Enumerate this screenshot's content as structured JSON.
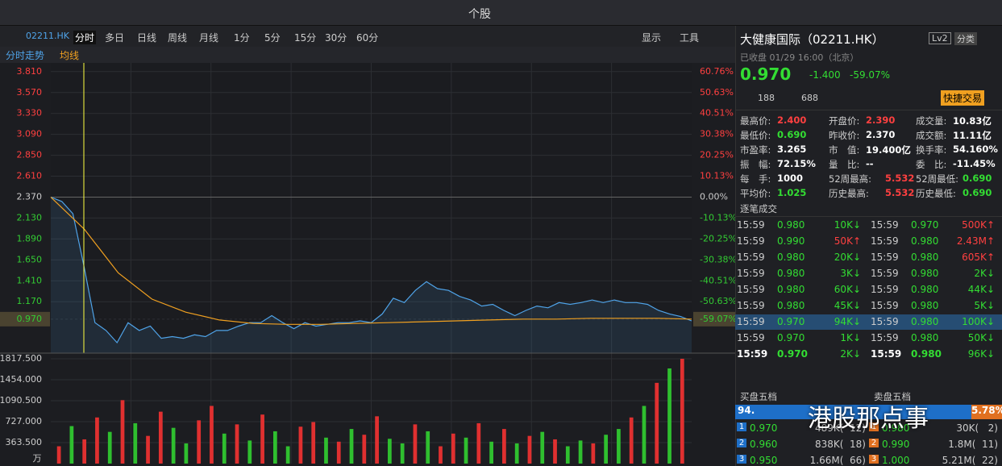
{
  "title_bar": {
    "title": "个股"
  },
  "toolbar": {
    "code": "02211.HK",
    "tabs": [
      "分时",
      "多日",
      "日线",
      "周线",
      "月线",
      "1分",
      "5分",
      "15分",
      "30分",
      "60分"
    ],
    "display": "显示",
    "tools": "工具"
  },
  "chart": {
    "legend": [
      {
        "name": "分时走势",
        "color": "#4fa3e8"
      },
      {
        "name": "均线",
        "color": "#f0a020"
      }
    ],
    "ylim": [
      0.58,
      3.91
    ],
    "price_ticks": [
      {
        "value": 3.81,
        "label": "3.810"
      },
      {
        "value": 3.57,
        "label": "3.570"
      },
      {
        "value": 3.33,
        "label": "3.330"
      },
      {
        "value": 3.09,
        "label": "3.090"
      },
      {
        "value": 2.85,
        "label": "2.850"
      },
      {
        "value": 2.61,
        "label": "2.610"
      },
      {
        "value": 2.37,
        "label": "2.370"
      },
      {
        "value": 2.13,
        "label": "2.130"
      },
      {
        "value": 1.89,
        "label": "1.890"
      },
      {
        "value": 1.65,
        "label": "1.650"
      },
      {
        "value": 1.41,
        "label": "1.410"
      },
      {
        "value": 1.17,
        "label": "1.170"
      },
      {
        "value": 0.97,
        "label": "0.970"
      }
    ],
    "pct_ticks": [
      {
        "value": 60.76,
        "label": "60.76%"
      },
      {
        "value": 50.63,
        "label": "50.63%"
      },
      {
        "value": 40.51,
        "label": "40.51%"
      },
      {
        "value": 30.38,
        "label": "30.38%"
      },
      {
        "value": 20.25,
        "label": "20.25%"
      },
      {
        "value": 10.13,
        "label": "10.13%"
      },
      {
        "value": 0,
        "label": "0.00%"
      },
      {
        "value": -10.13,
        "label": "-10.13%"
      },
      {
        "value": -20.25,
        "label": "-20.25%"
      },
      {
        "value": -30.38,
        "label": "-30.38%"
      },
      {
        "value": -40.51,
        "label": "-40.51%"
      },
      {
        "value": -50.63,
        "label": "-50.63%"
      },
      {
        "value": -59.07,
        "label": "-59.07%"
      }
    ],
    "price": [
      2.37,
      2.32,
      2.18,
      1.58,
      0.93,
      0.84,
      0.7,
      0.93,
      0.84,
      0.89,
      0.75,
      0.77,
      0.75,
      0.79,
      0.77,
      0.84,
      0.84,
      0.89,
      0.93,
      0.93,
      1.01,
      0.93,
      0.86,
      0.93,
      0.89,
      0.91,
      0.93,
      0.93,
      0.95,
      0.93,
      1.03,
      1.21,
      1.16,
      1.3,
      1.4,
      1.32,
      1.3,
      1.23,
      1.19,
      1.12,
      1.14,
      1.07,
      1.01,
      1.07,
      1.12,
      1.1,
      1.16,
      1.14,
      1.16,
      1.19,
      1.16,
      1.19,
      1.16,
      1.16,
      1.14,
      1.07,
      1.03,
      1.0,
      0.95
    ],
    "avg": [
      2.37,
      2.0,
      1.5,
      1.2,
      1.05,
      0.96,
      0.92,
      0.91,
      0.91,
      0.92,
      0.93,
      0.94,
      0.95,
      0.96,
      0.97,
      0.97,
      0.98,
      0.98,
      0.98,
      0.97
    ],
    "volume_ylim": [
      0,
      1817.5
    ],
    "volume_ticks": [
      {
        "value": 1817.5,
        "label": "1817.500"
      },
      {
        "value": 1454,
        "label": "1454.000"
      },
      {
        "value": 1090.5,
        "label": "1090.500"
      },
      {
        "value": 727,
        "label": "727.000"
      },
      {
        "value": 363.5,
        "label": "363.500"
      }
    ],
    "volume_unit": "万",
    "volume": [
      300,
      650,
      420,
      800,
      550,
      1100,
      700,
      480,
      900,
      620,
      350,
      750,
      1000,
      520,
      680,
      400,
      850,
      560,
      300,
      640,
      720,
      450,
      380,
      600,
      500,
      820,
      430,
      350,
      680,
      560,
      300,
      520,
      450,
      700,
      380,
      600,
      350,
      480,
      550,
      420,
      300,
      400,
      350,
      500,
      600,
      800,
      1000,
      1400,
      1650,
      1817.5
    ],
    "volume_colors": [
      "#e03030",
      "#2fbf2f",
      "#e03030",
      "#e03030",
      "#2fbf2f",
      "#e03030",
      "#2fbf2f",
      "#e03030",
      "#e03030",
      "#2fbf2f",
      "#2fbf2f",
      "#e03030",
      "#e03030",
      "#2fbf2f",
      "#e03030",
      "#2fbf2f",
      "#e03030",
      "#2fbf2f",
      "#2fbf2f",
      "#e03030",
      "#e03030",
      "#2fbf2f",
      "#e03030",
      "#2fbf2f",
      "#e03030",
      "#e03030",
      "#2fbf2f",
      "#2fbf2f",
      "#e03030",
      "#2fbf2f",
      "#e03030",
      "#e03030",
      "#2fbf2f",
      "#e03030",
      "#2fbf2f",
      "#e03030",
      "#2fbf2f",
      "#e03030",
      "#2fbf2f",
      "#e03030",
      "#2fbf2f",
      "#2fbf2f",
      "#e03030",
      "#2fbf2f",
      "#2fbf2f",
      "#e03030",
      "#2fbf2f",
      "#e03030",
      "#2fbf2f",
      "#e03030"
    ]
  },
  "info": {
    "name": "大健康国际（02211.HK）",
    "lv2": "Lv2",
    "category": "分类",
    "status": "已收盘 01/29 16:00（北京）",
    "price": "0.970",
    "change": "-1.400",
    "pct": "-59.07%",
    "views": "188",
    "likes": "688",
    "quick": "快捷交易",
    "stats": [
      [
        {
          "k": "最高价:",
          "v": "2.400",
          "c": "#ff4040"
        },
        {
          "k": "开盘价:",
          "v": "2.390",
          "c": "#ff4040"
        },
        {
          "k": "成交量:",
          "v": "10.83亿",
          "c": "#ffffff"
        }
      ],
      [
        {
          "k": "最低价:",
          "v": "0.690",
          "c": "#33dd33"
        },
        {
          "k": "昨收价:",
          "v": "2.370",
          "c": "#ffffff"
        },
        {
          "k": "成交额:",
          "v": "11.11亿",
          "c": "#ffffff"
        }
      ],
      [
        {
          "k": "市盈率:",
          "v": "3.265",
          "c": "#ffffff"
        },
        {
          "k": "市　值:",
          "v": "19.400亿",
          "c": "#ffffff"
        },
        {
          "k": "换手率:",
          "v": "54.160%",
          "c": "#ffffff"
        }
      ],
      [
        {
          "k": "振　幅:",
          "v": "72.15%",
          "c": "#ffffff"
        },
        {
          "k": "量　比:",
          "v": "--",
          "c": "#ffffff"
        },
        {
          "k": "委　比:",
          "v": "-11.45%",
          "c": "#ffffff"
        }
      ],
      [
        {
          "k": "每　手:",
          "v": "1000",
          "c": "#ffffff"
        },
        {
          "k": "52周最高:",
          "v": "5.532",
          "c": "#ff4040"
        },
        {
          "k": "52周最低:",
          "v": "0.690",
          "c": "#33dd33"
        }
      ],
      [
        {
          "k": "平均价:",
          "v": "1.025",
          "c": "#33dd33"
        },
        {
          "k": "历史最高:",
          "v": "5.532",
          "c": "#ff4040"
        },
        {
          "k": "历史最低:",
          "v": "0.690",
          "c": "#33dd33"
        }
      ]
    ]
  },
  "trades": {
    "title": "逐笔成交",
    "rows": [
      [
        {
          "t": "15:59",
          "p": "0.980",
          "v": "10K",
          "c": "#33dd33"
        },
        {
          "t": "15:59",
          "p": "0.970",
          "v": "500K",
          "c": "#ff4040"
        }
      ],
      [
        {
          "t": "15:59",
          "p": "0.990",
          "v": "50K",
          "c": "#ff4040"
        },
        {
          "t": "15:59",
          "p": "0.980",
          "v": "2.43M",
          "c": "#ff4040"
        }
      ],
      [
        {
          "t": "15:59",
          "p": "0.980",
          "v": "20K",
          "c": "#33dd33"
        },
        {
          "t": "15:59",
          "p": "0.980",
          "v": "605K",
          "c": "#ff4040"
        }
      ],
      [
        {
          "t": "15:59",
          "p": "0.980",
          "v": "3K",
          "c": "#33dd33"
        },
        {
          "t": "15:59",
          "p": "0.980",
          "v": "2K",
          "c": "#33dd33"
        }
      ],
      [
        {
          "t": "15:59",
          "p": "0.980",
          "v": "60K",
          "c": "#33dd33"
        },
        {
          "t": "15:59",
          "p": "0.980",
          "v": "44K",
          "c": "#33dd33"
        }
      ],
      [
        {
          "t": "15:59",
          "p": "0.980",
          "v": "45K",
          "c": "#33dd33"
        },
        {
          "t": "15:59",
          "p": "0.980",
          "v": "5K",
          "c": "#33dd33"
        }
      ],
      [
        {
          "t": "15:59",
          "p": "0.970",
          "v": "94K",
          "c": "#33dd33"
        },
        {
          "t": "15:59",
          "p": "0.980",
          "v": "100K",
          "c": "#33dd33"
        }
      ],
      [
        {
          "t": "15:59",
          "p": "0.970",
          "v": "1K",
          "c": "#33dd33"
        },
        {
          "t": "15:59",
          "p": "0.980",
          "v": "50K",
          "c": "#33dd33"
        }
      ],
      [
        {
          "t": "15:59",
          "p": "0.970",
          "v": "2K",
          "c": "#33dd33"
        },
        {
          "t": "15:59",
          "p": "0.980",
          "v": "96K",
          "c": "#33dd33"
        }
      ]
    ]
  },
  "orderbook": {
    "bid_title": "买盘五档",
    "ask_title": "卖盘五档",
    "bid_pct": "94.",
    "ask_pct": "5.78%",
    "rows": [
      [
        {
          "n": "1",
          "p": "0.970",
          "q": "489K(  12)"
        },
        {
          "n": "1",
          "p": "0.980",
          "q": "30K(   2)"
        }
      ],
      [
        {
          "n": "2",
          "p": "0.960",
          "q": "838K(  18)"
        },
        {
          "n": "2",
          "p": "0.990",
          "q": "1.8M(  11)"
        }
      ],
      [
        {
          "n": "3",
          "p": "0.950",
          "q": "1.66M(  66)"
        },
        {
          "n": "3",
          "p": "1.000",
          "q": "5.21M(  22)"
        }
      ]
    ]
  },
  "watermark": "港股那点事"
}
